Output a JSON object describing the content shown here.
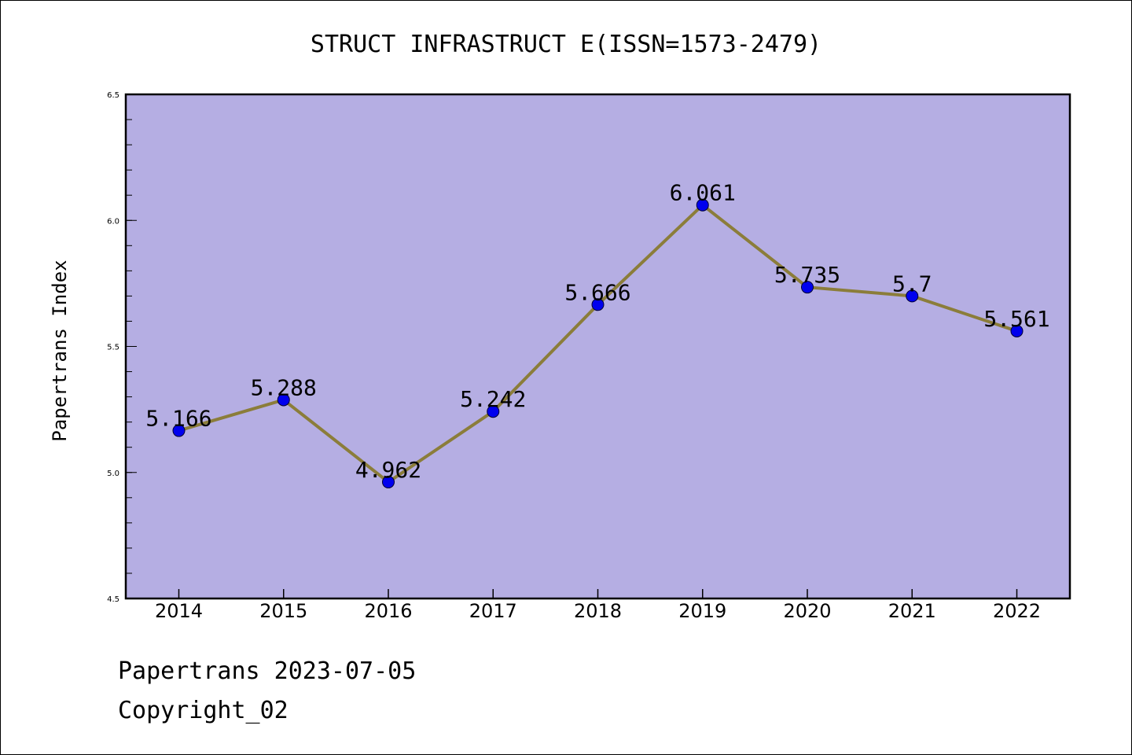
{
  "chart_data": {
    "type": "line",
    "title": "STRUCT INFRASTRUCT E(ISSN=1573-2479)",
    "xlabel": "",
    "ylabel": "Papertrans Index",
    "categories": [
      "2014",
      "2015",
      "2016",
      "2017",
      "2018",
      "2019",
      "2020",
      "2021",
      "2022"
    ],
    "series": [
      {
        "values": [
          5.166,
          5.288,
          4.962,
          5.242,
          5.666,
          6.061,
          5.735,
          5.7,
          5.561
        ],
        "labels": [
          "5.166",
          "5.288",
          "4.962",
          "5.242",
          "5.666",
          "6.061",
          "5.735",
          "5.7",
          "5.561"
        ]
      }
    ],
    "ylim": [
      4.5,
      6.5
    ],
    "yticks": [
      "4.5",
      "5.0",
      "5.5",
      "6.0",
      "6.5"
    ],
    "grid": false,
    "colors": {
      "plot_background": "#b5aee3",
      "line": "#8b7d3a",
      "marker": "#0000ee"
    }
  },
  "footer": {
    "line1": "Papertrans 2023-07-05",
    "line2": "Copyright_02"
  }
}
